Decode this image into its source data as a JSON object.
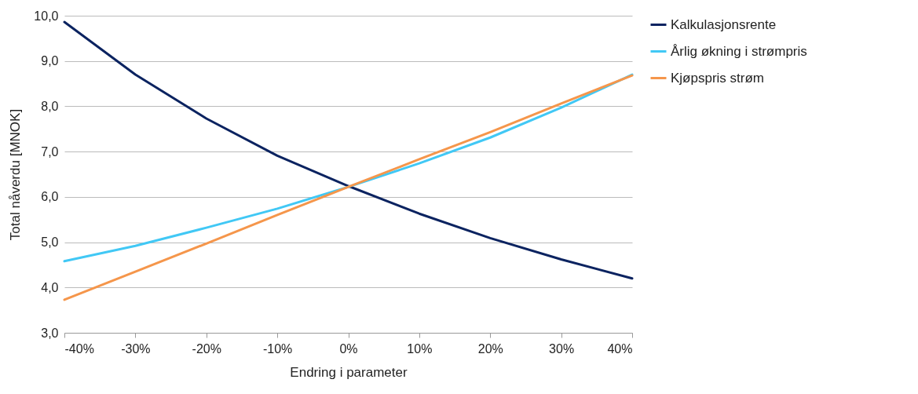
{
  "chart_data": {
    "type": "line",
    "xlabel": "Endring i parameter",
    "ylabel": "Total nåverdu [MNOK]",
    "x": [
      -40,
      -30,
      -20,
      -10,
      0,
      10,
      20,
      30,
      40
    ],
    "series": [
      {
        "name": "Kalkulasjonsrente",
        "color": "#0b2360",
        "values": [
          9.86,
          8.7,
          7.73,
          6.91,
          6.24,
          5.63,
          5.09,
          4.62,
          4.2
        ]
      },
      {
        "name": "Årlig økning i strømpris",
        "color": "#41c8f5",
        "values": [
          4.58,
          4.92,
          5.32,
          5.74,
          6.22,
          6.74,
          7.31,
          7.97,
          8.7
        ]
      },
      {
        "name": "Kjøpspris strøm",
        "color": "#f5964b",
        "values": [
          3.73,
          4.35,
          4.97,
          5.6,
          6.22,
          6.83,
          7.43,
          8.06,
          8.68
        ]
      }
    ],
    "xlim": [
      -40,
      40
    ],
    "xticks": [
      {
        "value": -40,
        "label": "-40%"
      },
      {
        "value": -30,
        "label": "-30%"
      },
      {
        "value": -20,
        "label": "-20%"
      },
      {
        "value": -10,
        "label": "-10%"
      },
      {
        "value": 0,
        "label": "0%"
      },
      {
        "value": 10,
        "label": "10%"
      },
      {
        "value": 20,
        "label": "20%"
      },
      {
        "value": 30,
        "label": "30%"
      },
      {
        "value": 40,
        "label": "40%"
      }
    ],
    "ylim": [
      3,
      10
    ],
    "yticks": [
      {
        "value": 3,
        "label": "3,0"
      },
      {
        "value": 4,
        "label": "4,0"
      },
      {
        "value": 5,
        "label": "5,0"
      },
      {
        "value": 6,
        "label": "6,0"
      },
      {
        "value": 7,
        "label": "7,0"
      },
      {
        "value": 8,
        "label": "8,0"
      },
      {
        "value": 9,
        "label": "9,0"
      },
      {
        "value": 10,
        "label": "10,0"
      }
    ],
    "grid": "y",
    "legend": "right",
    "marker": "none",
    "line_style": "solid"
  }
}
